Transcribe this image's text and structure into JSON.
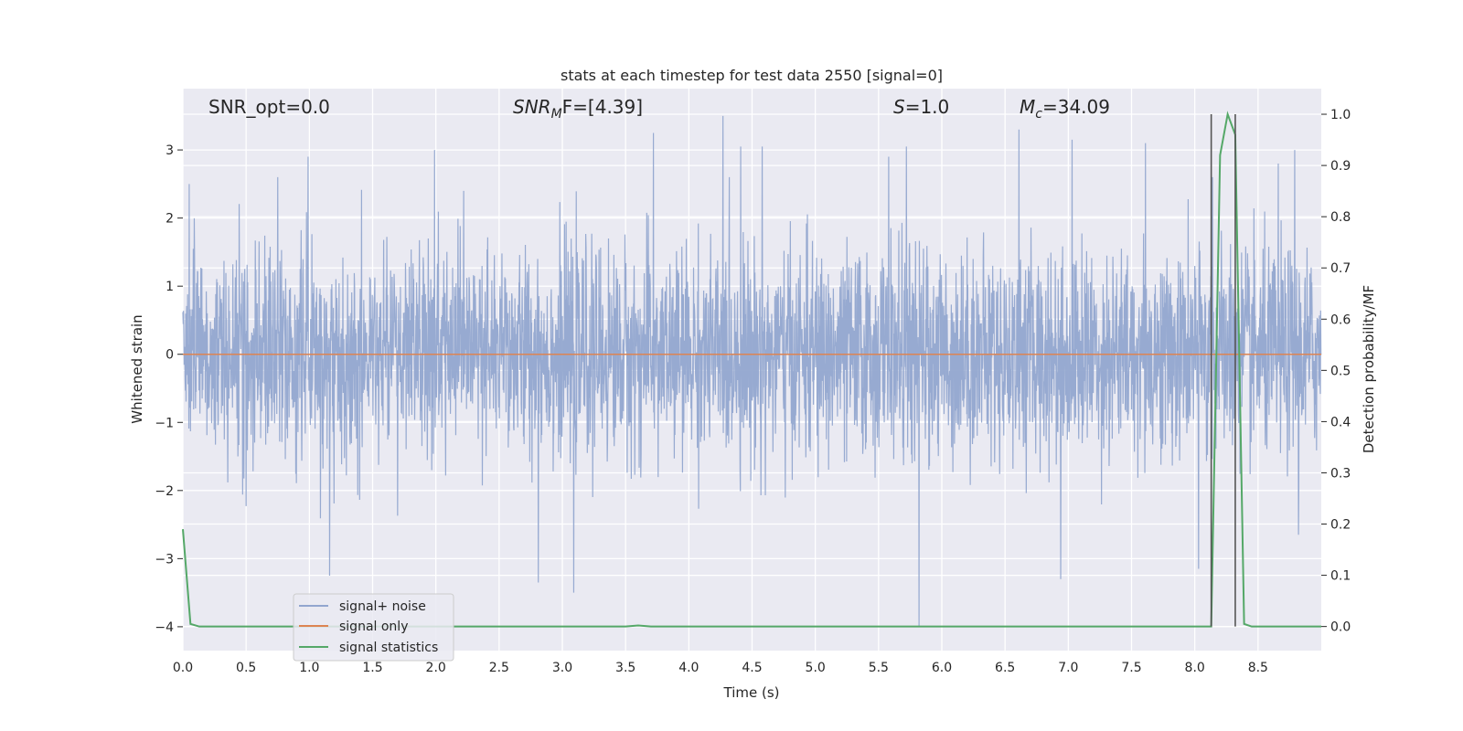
{
  "chart_data": {
    "type": "line",
    "title": "stats at each timestep for test data 2550 [signal=0]",
    "xlabel": "Time (s)",
    "ylabel_left": "Whitened strain",
    "ylabel_right": "Detection probability/MF",
    "xlim": [
      0.0,
      9.0
    ],
    "ylim_left": [
      -4.35,
      3.9
    ],
    "ylim_right": [
      -0.047,
      1.05
    ],
    "xticks": [
      "0.0",
      "0.5",
      "1.0",
      "1.5",
      "2.0",
      "2.5",
      "3.0",
      "3.5",
      "4.0",
      "4.5",
      "5.0",
      "5.5",
      "6.0",
      "6.5",
      "7.0",
      "7.5",
      "8.0",
      "8.5"
    ],
    "yticks_left": [
      "3",
      "2",
      "1",
      "0",
      "−1",
      "−2",
      "−3",
      "−4"
    ],
    "yticks_left_values": [
      3,
      2,
      1,
      0,
      -1,
      -2,
      -3,
      -4
    ],
    "yticks_right": [
      "1.0",
      "0.9",
      "0.8",
      "0.7",
      "0.6",
      "0.5",
      "0.4",
      "0.3",
      "0.2",
      "0.1",
      "0.0"
    ],
    "yticks_right_values": [
      1.0,
      0.9,
      0.8,
      0.7,
      0.6,
      0.5,
      0.4,
      0.3,
      0.2,
      0.1,
      0.0
    ],
    "grid": true,
    "legend_placement": "lower-left",
    "annotations": {
      "snr_opt": "SNR_opt=0.0",
      "snr_mf_sym": "SNR",
      "snr_mf_sub": "M",
      "snr_mf_rest": "F=[4.39]",
      "s_sym": "S",
      "s_rest": "=1.0",
      "mc_sym": "M",
      "mc_sub": "c",
      "mc_rest": "=34.09"
    },
    "vlines_x": [
      8.13,
      8.32
    ],
    "series": [
      {
        "name": "signal+ noise",
        "color": "#92a6cf",
        "axis": "left",
        "description_values": "dense whitened noise, mostly within ±2, peaks up to about 3.5 and down to about -4",
        "noise_sigma": 0.75,
        "spikes": [
          {
            "x": 0.05,
            "y": 2.5
          },
          {
            "x": 0.75,
            "y": 2.6
          },
          {
            "x": 0.99,
            "y": 2.9
          },
          {
            "x": 1.16,
            "y": -3.25
          },
          {
            "x": 1.99,
            "y": 3.0
          },
          {
            "x": 2.22,
            "y": 2.4
          },
          {
            "x": 2.81,
            "y": -3.35
          },
          {
            "x": 3.09,
            "y": -3.5
          },
          {
            "x": 3.72,
            "y": 3.25
          },
          {
            "x": 4.27,
            "y": 3.5
          },
          {
            "x": 4.41,
            "y": 3.05
          },
          {
            "x": 4.58,
            "y": 3.05
          },
          {
            "x": 5.58,
            "y": 2.9
          },
          {
            "x": 5.72,
            "y": 3.05
          },
          {
            "x": 5.82,
            "y": -4.0
          },
          {
            "x": 6.61,
            "y": 3.3
          },
          {
            "x": 6.94,
            "y": -3.3
          },
          {
            "x": 7.03,
            "y": 3.15
          },
          {
            "x": 7.61,
            "y": 3.1
          },
          {
            "x": 8.03,
            "y": -3.15
          },
          {
            "x": 8.14,
            "y": 2.6
          },
          {
            "x": 8.66,
            "y": 2.8
          },
          {
            "x": 8.79,
            "y": 3.0
          },
          {
            "x": 8.82,
            "y": -2.65
          }
        ]
      },
      {
        "name": "signal only",
        "color": "#dd8452",
        "axis": "left",
        "x": [
          0.0,
          9.0
        ],
        "y": [
          0.0,
          0.0
        ]
      },
      {
        "name": "signal statistics",
        "color": "#55a868",
        "axis": "right",
        "x": [
          0.0,
          0.06,
          0.13,
          3.5,
          3.6,
          3.7,
          8.13,
          8.2,
          8.26,
          8.32,
          8.39,
          8.45,
          9.0
        ],
        "y": [
          0.19,
          0.005,
          0.0,
          0.0,
          0.002,
          0.0,
          0.0,
          0.92,
          1.0,
          0.96,
          0.005,
          0.0,
          0.0
        ]
      }
    ]
  }
}
